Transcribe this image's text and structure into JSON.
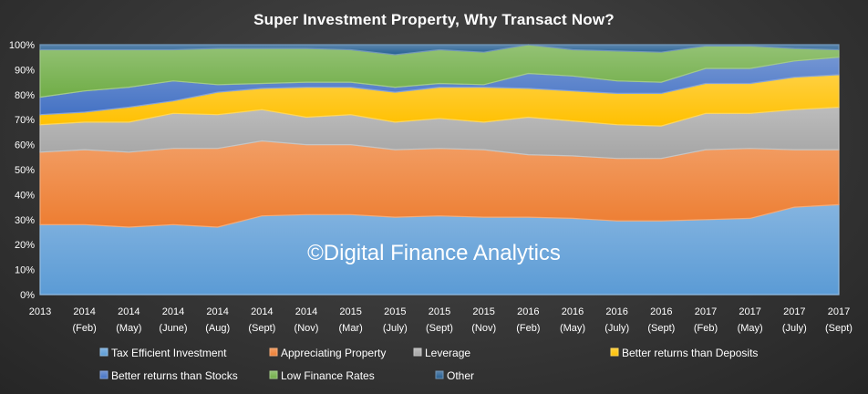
{
  "chart_data": {
    "type": "area",
    "stacked": true,
    "percent": true,
    "title": "Super Investment Property, Why Transact Now?",
    "watermark": "©Digital Finance Analytics",
    "categories": [
      [
        "2013",
        ""
      ],
      [
        "2014",
        "(Feb)"
      ],
      [
        "2014",
        "(May)"
      ],
      [
        "2014",
        "(June)"
      ],
      [
        "2014",
        "(Aug)"
      ],
      [
        "2014",
        "(Sept)"
      ],
      [
        "2014",
        "(Nov)"
      ],
      [
        "2015",
        "(Mar)"
      ],
      [
        "2015",
        "(July)"
      ],
      [
        "2015",
        "(Sept)"
      ],
      [
        "2015",
        "(Nov)"
      ],
      [
        "2016",
        "(Feb)"
      ],
      [
        "2016",
        "(May)"
      ],
      [
        "2016",
        "(July)"
      ],
      [
        "2016",
        "(Sept)"
      ],
      [
        "2017",
        "(Feb)"
      ],
      [
        "2017",
        "(May)"
      ],
      [
        "2017",
        "(July)"
      ],
      [
        "2017",
        "(Sept)"
      ]
    ],
    "yticks": [
      "0%",
      "10%",
      "20%",
      "30%",
      "40%",
      "50%",
      "60%",
      "70%",
      "80%",
      "90%",
      "100%"
    ],
    "ylim": [
      0,
      100
    ],
    "grid": true,
    "legend_position": "bottom",
    "series": [
      {
        "name": "Tax Efficient Investment",
        "color": "#5b9bd5",
        "values": [
          28,
          28,
          27,
          28,
          27,
          31.5,
          32,
          32,
          31,
          31.5,
          31,
          31,
          30.5,
          29.5,
          29.5,
          30,
          30.5,
          35,
          36
        ]
      },
      {
        "name": "Appreciating Property",
        "color": "#ed7d31",
        "values": [
          29,
          30,
          30,
          30.5,
          31.5,
          30,
          28,
          28,
          27,
          27,
          27,
          25,
          25,
          25,
          25,
          28,
          28,
          23,
          22
        ]
      },
      {
        "name": "Leverage",
        "color": "#a5a5a5",
        "values": [
          11,
          11,
          12,
          14,
          13.5,
          12.5,
          11,
          12,
          11,
          12,
          11,
          15,
          14,
          13.5,
          13,
          14.5,
          14,
          16,
          17
        ]
      },
      {
        "name": "Better returns than Deposits",
        "color": "#ffc000",
        "values": [
          4,
          4,
          6,
          5,
          9,
          8.5,
          12,
          11,
          12,
          12.5,
          14,
          11.5,
          12,
          12.5,
          13,
          12,
          12,
          13,
          13
        ]
      },
      {
        "name": "Better returns than Stocks",
        "color": "#4472c4",
        "values": [
          7,
          8.5,
          8,
          8,
          3,
          2,
          2,
          2,
          2,
          1.5,
          1,
          6,
          6,
          5,
          4.5,
          6,
          6,
          6.5,
          7
        ]
      },
      {
        "name": "Low Finance Rates",
        "color": "#70ad47",
        "values": [
          19,
          16.5,
          15,
          12.5,
          14.5,
          14,
          13.5,
          13,
          13,
          13.5,
          13,
          11.5,
          10.5,
          12,
          12,
          9,
          9,
          5,
          3
        ]
      },
      {
        "name": "Other",
        "color": "#255e91",
        "values": [
          2,
          2,
          2,
          2,
          1.5,
          1.5,
          1.5,
          2,
          4,
          2,
          3,
          0,
          2,
          2.5,
          3,
          0.5,
          0.5,
          1.5,
          2
        ]
      }
    ]
  }
}
